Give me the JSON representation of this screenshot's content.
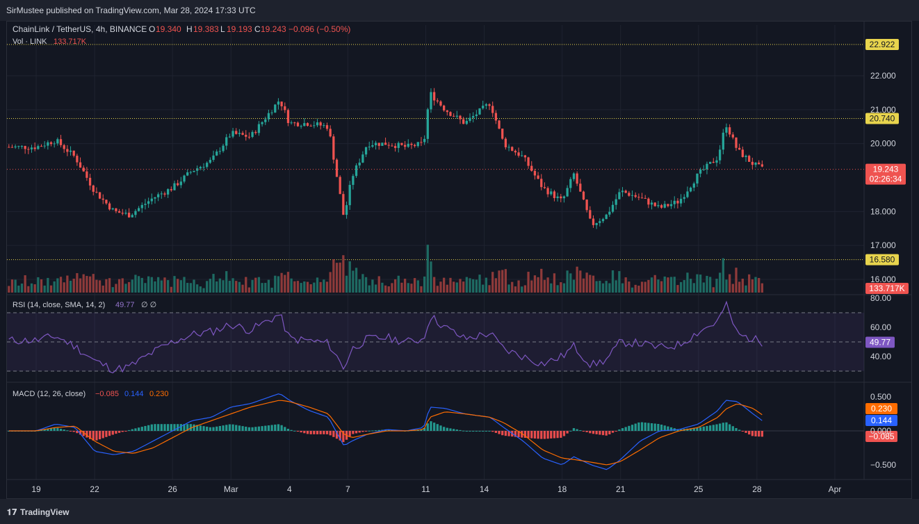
{
  "header": {
    "publisher": "SirMustee published on TradingView.com, Mar 28, 2024 17:33 UTC"
  },
  "footer": {
    "brand": "TradingView",
    "logo_icon": "tradingview-logo-icon"
  },
  "legend": {
    "symbol": "ChainLink / TetherUS, 4h, BINANCE",
    "open_label": "O",
    "open": "19.340",
    "high_label": "H",
    "high": "19.383",
    "low_label": "L",
    "low": "19.193",
    "close_label": "C",
    "close": "19.243",
    "change": "−0.096 (−0.50%)",
    "vol_label": "Vol · LINK",
    "vol": "133.717K",
    "rsi_label": "RSI (14, close, SMA, 14, 2)",
    "rsi_value": "49.77",
    "rsi_extra": "∅ ∅",
    "macd_label": "MACD (12, 26, close)",
    "macd_hist": "−0.085",
    "macd_line": "0.144",
    "macd_signal": "0.230"
  },
  "colors": {
    "background": "#131722",
    "up": "#26a69a",
    "down": "#ef5350",
    "vol_up": "#1e6b63",
    "vol_down": "#8e3a3a",
    "rsi": "#7e57c2",
    "macd": "#2962ff",
    "signal": "#ff6d00",
    "level": "#e8d44d",
    "axis_text": "#d1d4dc"
  },
  "chart_data": {
    "type": "candlestick",
    "symbol": "ChainLink / TetherUS",
    "interval": "4h",
    "exchange": "BINANCE",
    "price_axis": {
      "ticks": [
        "22.000",
        "21.000",
        "20.000",
        "18.000",
        "17.000",
        "16.000"
      ],
      "range": [
        15.6,
        23.9
      ]
    },
    "levels": [
      {
        "value": 22.922,
        "label": "22.922"
      },
      {
        "value": 20.74,
        "label": "20.740"
      },
      {
        "value": 16.58,
        "label": "16.580"
      }
    ],
    "last_price": {
      "value": 19.243,
      "label": "19.243",
      "countdown": "02:26:34"
    },
    "volume_label": "133.717K",
    "x_ticks": [
      "19",
      "22",
      "26",
      "Mar",
      "4",
      "7",
      "11",
      "14",
      "18",
      "21",
      "25",
      "28",
      "Apr"
    ],
    "x_tick_days": [
      19,
      22,
      26,
      29,
      32,
      35,
      39,
      42,
      46,
      49,
      53,
      56,
      60
    ],
    "price_path": [
      [
        19,
        19.9
      ],
      [
        20,
        20.1
      ],
      [
        21,
        19.6
      ],
      [
        22,
        18.6
      ],
      [
        23,
        18.0
      ],
      [
        23.8,
        17.9
      ],
      [
        25,
        18.4
      ],
      [
        26,
        18.7
      ],
      [
        27,
        19.2
      ],
      [
        28,
        19.5
      ],
      [
        29,
        20.3
      ],
      [
        30,
        20.2
      ],
      [
        31.5,
        21.3
      ],
      [
        32,
        20.6
      ],
      [
        33,
        20.6
      ],
      [
        34,
        20.5
      ],
      [
        34.8,
        17.8
      ],
      [
        35.2,
        19.0
      ],
      [
        36,
        20.0
      ],
      [
        37,
        20.0
      ],
      [
        38,
        19.9
      ],
      [
        38.9,
        20.0
      ],
      [
        39.2,
        21.5
      ],
      [
        40,
        21.0
      ],
      [
        41,
        20.6
      ],
      [
        42.3,
        21.2
      ],
      [
        43,
        20.0
      ],
      [
        44,
        19.6
      ],
      [
        45,
        18.7
      ],
      [
        46,
        18.3
      ],
      [
        46.6,
        19.1
      ],
      [
        47.5,
        17.6
      ],
      [
        48.3,
        17.9
      ],
      [
        49,
        18.6
      ],
      [
        50,
        18.4
      ],
      [
        51,
        18.1
      ],
      [
        52,
        18.3
      ],
      [
        53,
        19.1
      ],
      [
        54,
        19.6
      ],
      [
        54.4,
        20.6
      ],
      [
        55,
        19.8
      ],
      [
        55.8,
        19.4
      ],
      [
        56.3,
        19.24
      ]
    ],
    "rsi": {
      "axis_ticks": [
        "80.00",
        "60.00",
        "40.00"
      ],
      "bands": [
        70,
        50,
        30
      ],
      "range": [
        26,
        82
      ],
      "last": 49.77,
      "last_label": "49.77"
    },
    "rsi_path": [
      [
        19,
        51
      ],
      [
        20,
        54
      ],
      [
        21,
        47
      ],
      [
        22,
        37
      ],
      [
        23,
        31
      ],
      [
        23.8,
        33
      ],
      [
        25,
        43
      ],
      [
        26,
        50
      ],
      [
        27,
        55
      ],
      [
        28,
        57
      ],
      [
        29,
        62
      ],
      [
        30,
        58
      ],
      [
        31.5,
        69
      ],
      [
        32,
        52
      ],
      [
        33,
        51
      ],
      [
        34,
        49
      ],
      [
        34.8,
        32
      ],
      [
        35.2,
        45
      ],
      [
        36,
        52
      ],
      [
        37,
        53
      ],
      [
        38,
        50
      ],
      [
        38.9,
        52
      ],
      [
        39.2,
        68
      ],
      [
        40,
        60
      ],
      [
        41,
        52
      ],
      [
        42.3,
        56
      ],
      [
        43,
        45
      ],
      [
        44,
        40
      ],
      [
        45,
        35
      ],
      [
        46,
        40
      ],
      [
        46.6,
        47
      ],
      [
        47.5,
        34
      ],
      [
        48.3,
        38
      ],
      [
        49,
        50
      ],
      [
        50,
        49
      ],
      [
        51,
        46
      ],
      [
        52,
        48
      ],
      [
        53,
        57
      ],
      [
        54,
        64
      ],
      [
        54.4,
        76
      ],
      [
        55,
        55
      ],
      [
        55.8,
        52
      ],
      [
        56.3,
        49.8
      ]
    ],
    "macd": {
      "axis_ticks": [
        "0.500",
        "0.000",
        "−0.500"
      ],
      "range": [
        -0.62,
        0.62
      ],
      "hist_label": "−0.085",
      "macd_label": "0.144",
      "signal_label": "0.230"
    },
    "macd_path": [
      [
        19,
        0.0
      ],
      [
        20,
        0.1
      ],
      [
        21,
        0.05
      ],
      [
        22,
        -0.3
      ],
      [
        23,
        -0.35
      ],
      [
        24,
        -0.3
      ],
      [
        25,
        -0.15
      ],
      [
        26,
        0.0
      ],
      [
        27,
        0.15
      ],
      [
        28,
        0.2
      ],
      [
        29,
        0.35
      ],
      [
        30,
        0.4
      ],
      [
        31.5,
        0.55
      ],
      [
        32,
        0.45
      ],
      [
        33,
        0.3
      ],
      [
        34,
        0.2
      ],
      [
        34.8,
        -0.22
      ],
      [
        35.2,
        -0.15
      ],
      [
        36,
        -0.05
      ],
      [
        37,
        0.02
      ],
      [
        38,
        0.0
      ],
      [
        38.9,
        0.05
      ],
      [
        39.2,
        0.35
      ],
      [
        40,
        0.33
      ],
      [
        41,
        0.25
      ],
      [
        42.3,
        0.2
      ],
      [
        43,
        0.05
      ],
      [
        44,
        -0.15
      ],
      [
        45,
        -0.4
      ],
      [
        46,
        -0.5
      ],
      [
        46.6,
        -0.38
      ],
      [
        47.5,
        -0.5
      ],
      [
        48.3,
        -0.57
      ],
      [
        49,
        -0.42
      ],
      [
        50,
        -0.15
      ],
      [
        51,
        0.0
      ],
      [
        52,
        0.02
      ],
      [
        53,
        0.1
      ],
      [
        54,
        0.3
      ],
      [
        54.4,
        0.45
      ],
      [
        55,
        0.43
      ],
      [
        55.8,
        0.25
      ],
      [
        56.3,
        0.144
      ]
    ],
    "signal_path": [
      [
        19,
        0.0
      ],
      [
        20,
        0.05
      ],
      [
        21,
        0.07
      ],
      [
        22,
        -0.15
      ],
      [
        23,
        -0.3
      ],
      [
        24,
        -0.33
      ],
      [
        25,
        -0.25
      ],
      [
        26,
        -0.1
      ],
      [
        27,
        0.05
      ],
      [
        28,
        0.15
      ],
      [
        29,
        0.25
      ],
      [
        30,
        0.35
      ],
      [
        31.5,
        0.45
      ],
      [
        32,
        0.43
      ],
      [
        33,
        0.35
      ],
      [
        34,
        0.25
      ],
      [
        34.8,
        -0.05
      ],
      [
        35.2,
        -0.1
      ],
      [
        36,
        -0.05
      ],
      [
        37,
        0.0
      ],
      [
        38,
        0.0
      ],
      [
        38.9,
        0.02
      ],
      [
        39.2,
        0.2
      ],
      [
        40,
        0.28
      ],
      [
        41,
        0.25
      ],
      [
        42.3,
        0.2
      ],
      [
        43,
        0.12
      ],
      [
        44,
        -0.05
      ],
      [
        45,
        -0.28
      ],
      [
        46,
        -0.4
      ],
      [
        46.6,
        -0.42
      ],
      [
        47.5,
        -0.46
      ],
      [
        48.3,
        -0.5
      ],
      [
        49,
        -0.45
      ],
      [
        50,
        -0.28
      ],
      [
        51,
        -0.1
      ],
      [
        52,
        0.0
      ],
      [
        53,
        0.05
      ],
      [
        54,
        0.2
      ],
      [
        54.4,
        0.32
      ],
      [
        55,
        0.4
      ],
      [
        55.8,
        0.33
      ],
      [
        56.3,
        0.23
      ]
    ]
  }
}
